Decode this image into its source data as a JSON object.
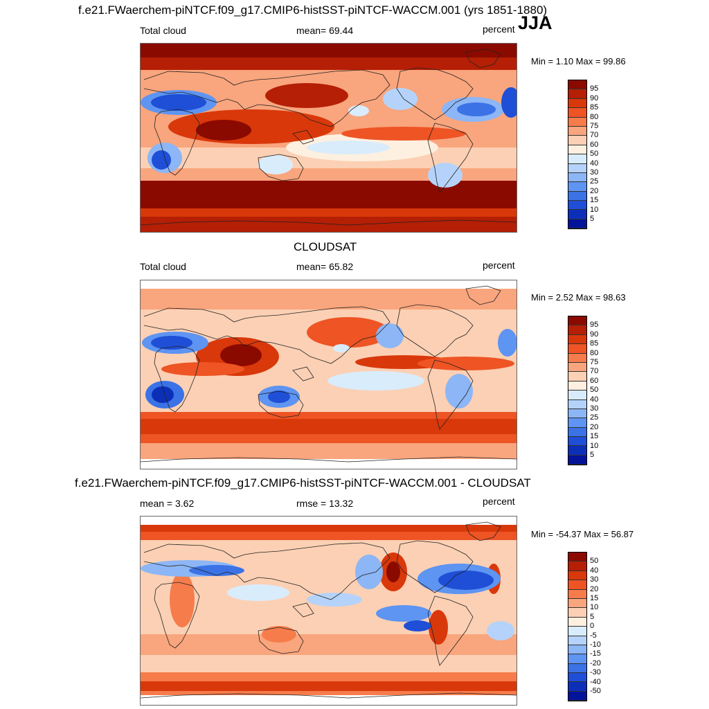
{
  "season": "JJA",
  "panels": [
    {
      "title": "f.e21.FWaerchem-piNTCF.f09_g17.CMIP6-histSST-piNTCF-WACCM.001 (yrs 1851-1880)",
      "left_label": "Total cloud",
      "center_label": "mean=  69.44",
      "right_label": "percent",
      "minmax": "Min =   1.10 Max =  99.86",
      "colorbar": {
        "labels": [
          "95",
          "90",
          "85",
          "80",
          "75",
          "70",
          "60",
          "50",
          "40",
          "30",
          "25",
          "20",
          "15",
          "10",
          "5"
        ],
        "colors": [
          "#8b0a00",
          "#b41f05",
          "#d9380b",
          "#ee5424",
          "#f67c4c",
          "#f9a57d",
          "#fcd0b4",
          "#fdf0e0",
          "#d9ecfc",
          "#b5d3fa",
          "#8cb6f6",
          "#5e94f2",
          "#3b72e6",
          "#1e4fd6",
          "#0c2fb8",
          "#03139a"
        ]
      }
    },
    {
      "title": "CLOUDSAT",
      "left_label": "Total cloud",
      "center_label": "mean=  65.82",
      "right_label": "percent",
      "minmax": "Min =   2.52 Max =  98.63",
      "colorbar": {
        "labels": [
          "95",
          "90",
          "85",
          "80",
          "75",
          "70",
          "60",
          "50",
          "40",
          "30",
          "25",
          "20",
          "15",
          "10",
          "5"
        ],
        "colors": [
          "#8b0a00",
          "#b41f05",
          "#d9380b",
          "#ee5424",
          "#f67c4c",
          "#f9a57d",
          "#fcd0b4",
          "#fdf0e0",
          "#d9ecfc",
          "#b5d3fa",
          "#8cb6f6",
          "#5e94f2",
          "#3b72e6",
          "#1e4fd6",
          "#0c2fb8",
          "#03139a"
        ]
      }
    },
    {
      "title": "f.e21.FWaerchem-piNTCF.f09_g17.CMIP6-histSST-piNTCF-WACCM.001 - CLOUDSAT",
      "left_label": "mean =   3.62",
      "center_label": "rmse =  13.32",
      "right_label": "percent",
      "minmax": "Min = -54.37 Max =  56.87",
      "colorbar": {
        "labels": [
          "50",
          "40",
          "30",
          "20",
          "15",
          "10",
          "5",
          "0",
          "-5",
          "-10",
          "-15",
          "-20",
          "-30",
          "-40",
          "-50"
        ],
        "colors": [
          "#8b0a00",
          "#b41f05",
          "#d9380b",
          "#ee5424",
          "#f67c4c",
          "#f9a57d",
          "#fcd0b4",
          "#fdf0e0",
          "#d9ecfc",
          "#b5d3fa",
          "#8cb6f6",
          "#5e94f2",
          "#3b72e6",
          "#1e4fd6",
          "#0c2fb8",
          "#03139a"
        ]
      }
    }
  ]
}
